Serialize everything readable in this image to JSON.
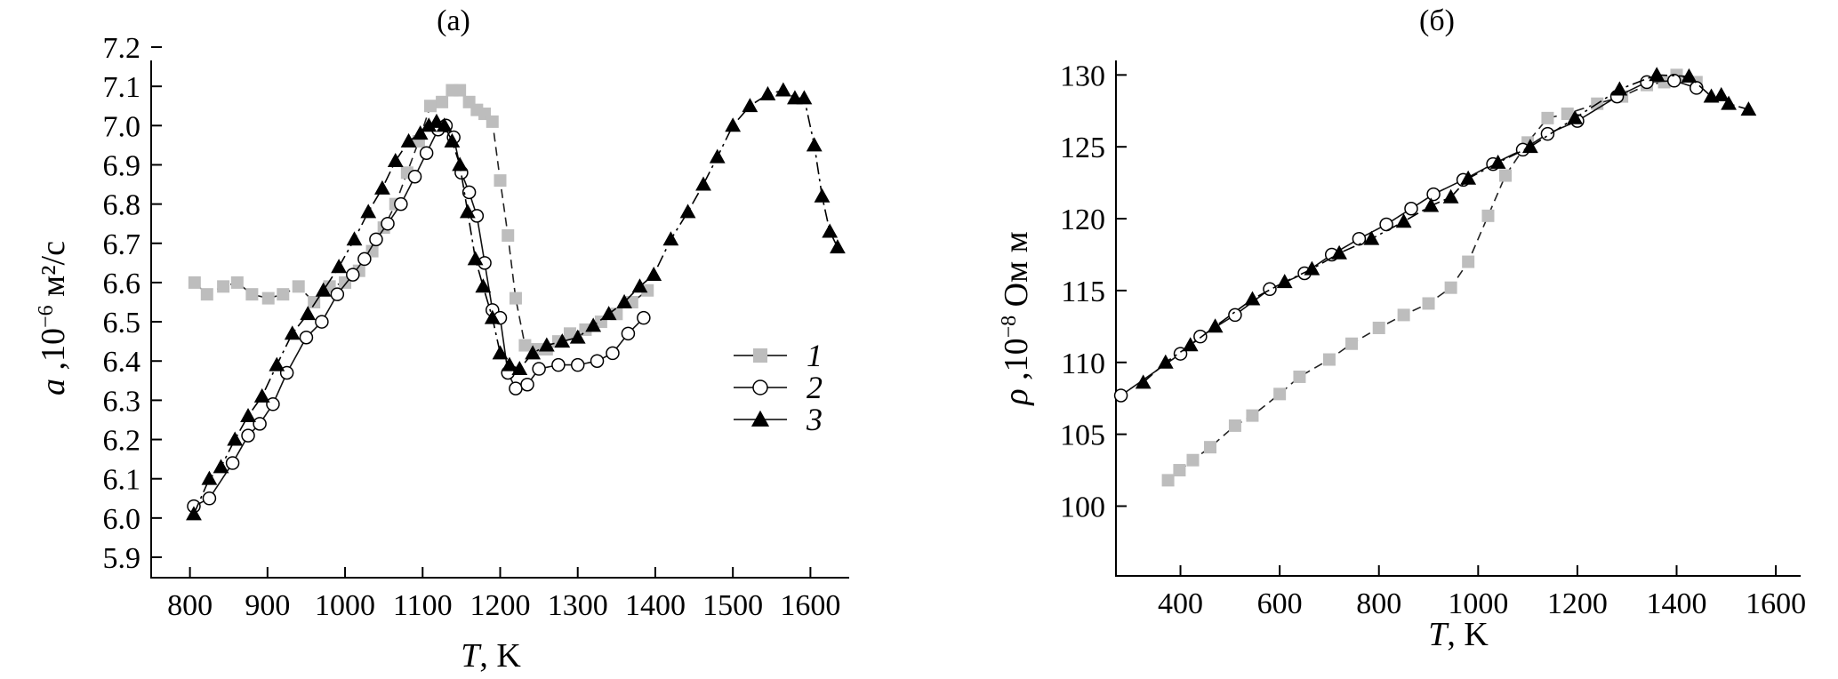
{
  "chart_data": [
    {
      "type": "line",
      "title": "(а)",
      "xlabel": {
        "var": "T",
        "rest": ", K"
      },
      "ylabel": {
        "var": "a",
        "rest": " ,10",
        "sup": "−6",
        "unit": " м²/c"
      },
      "xlim": [
        750,
        1650
      ],
      "ylim": [
        5.9,
        7.2
      ],
      "xticks": [
        800,
        900,
        1000,
        1100,
        1200,
        1300,
        1400,
        1500,
        1600
      ],
      "yticks": [
        5.9,
        6.0,
        6.1,
        6.2,
        6.3,
        6.4,
        6.5,
        6.6,
        6.7,
        6.8,
        6.9,
        7.0,
        7.1,
        7.2
      ],
      "legend_position": "right",
      "series": [
        {
          "name": "1",
          "marker": "square",
          "color": "#bdbdbd",
          "line_color": "#222222",
          "x": [
            806,
            822,
            843,
            861,
            880,
            901,
            920,
            940,
            960,
            980,
            1000,
            1018,
            1035,
            1050,
            1065,
            1080,
            1095,
            1110,
            1125,
            1138,
            1148,
            1160,
            1170,
            1180,
            1190,
            1200,
            1210,
            1220,
            1232,
            1245,
            1260,
            1275,
            1290,
            1310,
            1330,
            1350,
            1370,
            1390
          ],
          "y": [
            6.6,
            6.57,
            6.59,
            6.6,
            6.57,
            6.56,
            6.57,
            6.59,
            6.55,
            6.59,
            6.6,
            6.63,
            6.68,
            6.74,
            6.8,
            6.88,
            6.96,
            7.05,
            7.06,
            7.09,
            7.09,
            7.06,
            7.04,
            7.03,
            7.01,
            6.86,
            6.72,
            6.56,
            6.44,
            6.43,
            6.43,
            6.45,
            6.47,
            6.48,
            6.5,
            6.52,
            6.55,
            6.58
          ]
        },
        {
          "name": "2",
          "marker": "circle",
          "color": "#ffffff",
          "line_color": "#111111",
          "x": [
            805,
            825,
            855,
            875,
            890,
            907,
            925,
            950,
            970,
            990,
            1010,
            1025,
            1040,
            1055,
            1072,
            1090,
            1105,
            1120,
            1130,
            1140,
            1150,
            1160,
            1170,
            1180,
            1190,
            1200,
            1210,
            1220,
            1235,
            1250,
            1275,
            1300,
            1325,
            1345,
            1365,
            1385
          ],
          "y": [
            6.03,
            6.05,
            6.14,
            6.21,
            6.24,
            6.29,
            6.37,
            6.46,
            6.5,
            6.57,
            6.62,
            6.66,
            6.71,
            6.75,
            6.8,
            6.87,
            6.93,
            6.99,
            7.0,
            6.97,
            6.88,
            6.83,
            6.77,
            6.65,
            6.53,
            6.51,
            6.37,
            6.33,
            6.34,
            6.38,
            6.39,
            6.39,
            6.4,
            6.42,
            6.47,
            6.51
          ]
        },
        {
          "name": "3",
          "marker": "triangle",
          "color": "#000000",
          "line_color": "#000000",
          "x": [
            805,
            825,
            840,
            858,
            875,
            893,
            912,
            932,
            952,
            972,
            992,
            1012,
            1030,
            1048,
            1065,
            1082,
            1097,
            1108,
            1118,
            1128,
            1138,
            1148,
            1158,
            1168,
            1178,
            1190,
            1200,
            1212,
            1225,
            1242,
            1260,
            1280,
            1300,
            1320,
            1340,
            1360,
            1380,
            1398,
            1420,
            1442,
            1462,
            1480,
            1500,
            1522,
            1545,
            1565,
            1580,
            1592,
            1605,
            1615,
            1625,
            1635
          ],
          "y": [
            6.01,
            6.1,
            6.13,
            6.2,
            6.26,
            6.31,
            6.39,
            6.47,
            6.52,
            6.58,
            6.64,
            6.71,
            6.78,
            6.84,
            6.91,
            6.96,
            6.98,
            7.0,
            7.01,
            7.0,
            6.96,
            6.9,
            6.78,
            6.66,
            6.59,
            6.51,
            6.42,
            6.39,
            6.38,
            6.42,
            6.44,
            6.45,
            6.46,
            6.49,
            6.52,
            6.55,
            6.59,
            6.62,
            6.71,
            6.78,
            6.85,
            6.92,
            7.0,
            7.05,
            7.08,
            7.09,
            7.07,
            7.07,
            6.95,
            6.82,
            6.73,
            6.69
          ]
        }
      ]
    },
    {
      "type": "line",
      "title": "(б)",
      "xlabel": {
        "var": "T",
        "rest": ", K"
      },
      "ylabel": {
        "var": "ρ",
        "rest": " ,10",
        "sup": "−8",
        "unit": " Ом м"
      },
      "xlim": [
        270,
        1650
      ],
      "ylim": [
        97,
        132
      ],
      "xticks": [
        400,
        600,
        800,
        1000,
        1200,
        1400,
        1600
      ],
      "yticks": [
        100,
        105,
        110,
        115,
        120,
        125,
        130
      ],
      "legend_position": "none",
      "series": [
        {
          "name": "1",
          "marker": "square",
          "color": "#bdbdbd",
          "line_color": "#222222",
          "x": [
            375,
            398,
            425,
            460,
            510,
            545,
            600,
            640,
            700,
            745,
            800,
            850,
            900,
            945,
            980,
            1020,
            1055,
            1100,
            1140,
            1180,
            1240,
            1290,
            1340,
            1375,
            1400,
            1440
          ],
          "y": [
            101.8,
            102.5,
            103.2,
            104.1,
            105.6,
            106.3,
            107.8,
            109.0,
            110.2,
            111.3,
            112.4,
            113.3,
            114.1,
            115.2,
            117.0,
            120.2,
            123.0,
            125.3,
            127.0,
            127.3,
            128.0,
            128.5,
            129.3,
            129.5,
            130.0,
            129.5
          ]
        },
        {
          "name": "2",
          "marker": "circle",
          "color": "#ffffff",
          "line_color": "#111111",
          "x": [
            280,
            400,
            440,
            510,
            580,
            650,
            705,
            760,
            815,
            865,
            910,
            970,
            1030,
            1090,
            1140,
            1200,
            1280,
            1340,
            1395,
            1440
          ],
          "y": [
            107.7,
            110.6,
            111.8,
            113.3,
            115.1,
            116.2,
            117.5,
            118.6,
            119.6,
            120.7,
            121.7,
            122.7,
            123.8,
            124.8,
            125.9,
            126.8,
            128.5,
            129.5,
            129.6,
            129.1
          ]
        },
        {
          "name": "3",
          "marker": "triangle",
          "color": "#000000",
          "line_color": "#000000",
          "x": [
            325,
            370,
            420,
            470,
            545,
            610,
            665,
            720,
            785,
            850,
            905,
            945,
            980,
            1040,
            1105,
            1195,
            1285,
            1360,
            1425,
            1470,
            1490,
            1505,
            1545
          ],
          "y": [
            108.6,
            110.0,
            111.2,
            112.5,
            114.4,
            115.6,
            116.5,
            117.6,
            118.6,
            119.8,
            120.9,
            121.5,
            122.8,
            123.9,
            125.0,
            127.0,
            129.0,
            130.0,
            129.9,
            128.5,
            128.6,
            128.0,
            127.6
          ]
        }
      ]
    }
  ]
}
